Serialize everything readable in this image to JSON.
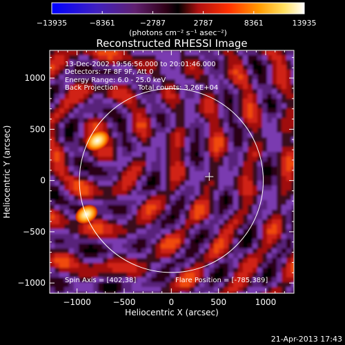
{
  "chart_data": {
    "type": "heatmap",
    "title": "Reconstructed RHESSI Image",
    "xlabel": "Heliocentric X (arcsec)",
    "ylabel": "Heliocentric Y (arcsec)",
    "xlim": [
      -1290,
      1300
    ],
    "ylim": [
      -1100,
      1270
    ],
    "x_ticks": [
      -1000,
      -500,
      0,
      500,
      1000
    ],
    "y_ticks": [
      -1000,
      -500,
      0,
      500,
      1000
    ],
    "x_tick_labels": [
      "−1000",
      "−500",
      "0",
      "500",
      "1000"
    ],
    "y_tick_labels": [
      "−1000",
      "−500",
      "0",
      "500",
      "1000"
    ],
    "colorbar": {
      "ticks": [
        -13935,
        -8361,
        -2787,
        2787,
        8361,
        13935
      ],
      "tick_labels": [
        "−13935",
        "−8361",
        "−2787",
        "2787",
        "8361",
        "13935"
      ],
      "range": [
        -13935,
        13935
      ],
      "units_label": "(photons cm⁻² s⁻¹ asec⁻²)",
      "colors": [
        "#0000ff",
        "#4020c0",
        "#602070",
        "#300018",
        "#000000",
        "#b01010",
        "#ff3000",
        "#ff9a00",
        "#ffe060",
        "#ffffff"
      ]
    },
    "annotations": [
      "13-Dec-2002 19:56:56.000 to 20:01:46.000",
      "Detectors: 7F 8F 9F, Att 0",
      "Energy Range: 6.0 - 25.0 keV",
      "Back Projection",
      "Total counts: 3.26E+04"
    ],
    "spin_axis_label": "Spin Axis = [402,38]",
    "flare_position_label": "Flare Position = [-785,389]",
    "spin_axis": [
      402,
      38
    ],
    "flare_position": [
      -785,
      389
    ],
    "solar_limb_radius": 975,
    "solar_limb_center": [
      0,
      0
    ],
    "bright_sources": [
      {
        "x": -785,
        "y": 389,
        "level": 13935
      },
      {
        "x": -900,
        "y": -330,
        "level": 11000
      }
    ]
  },
  "footer": {
    "timestamp": "21-Apr-2013 17:43"
  }
}
